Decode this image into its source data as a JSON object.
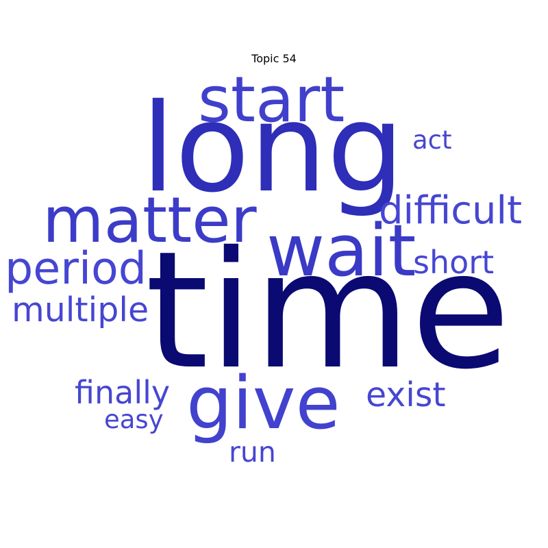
{
  "title": "Topic 54",
  "colors": {
    "dark": "#0a0a72",
    "mid": "#3030b8",
    "light": "#4444d0"
  },
  "words": {
    "time": "time",
    "long": "long",
    "start": "start",
    "wait": "wait",
    "matter": "matter",
    "give": "give",
    "period": "period",
    "difficult": "difficult",
    "multiple": "multiple",
    "short": "short",
    "exist": "exist",
    "finally": "finally",
    "easy": "easy",
    "run": "run",
    "act": "act"
  }
}
